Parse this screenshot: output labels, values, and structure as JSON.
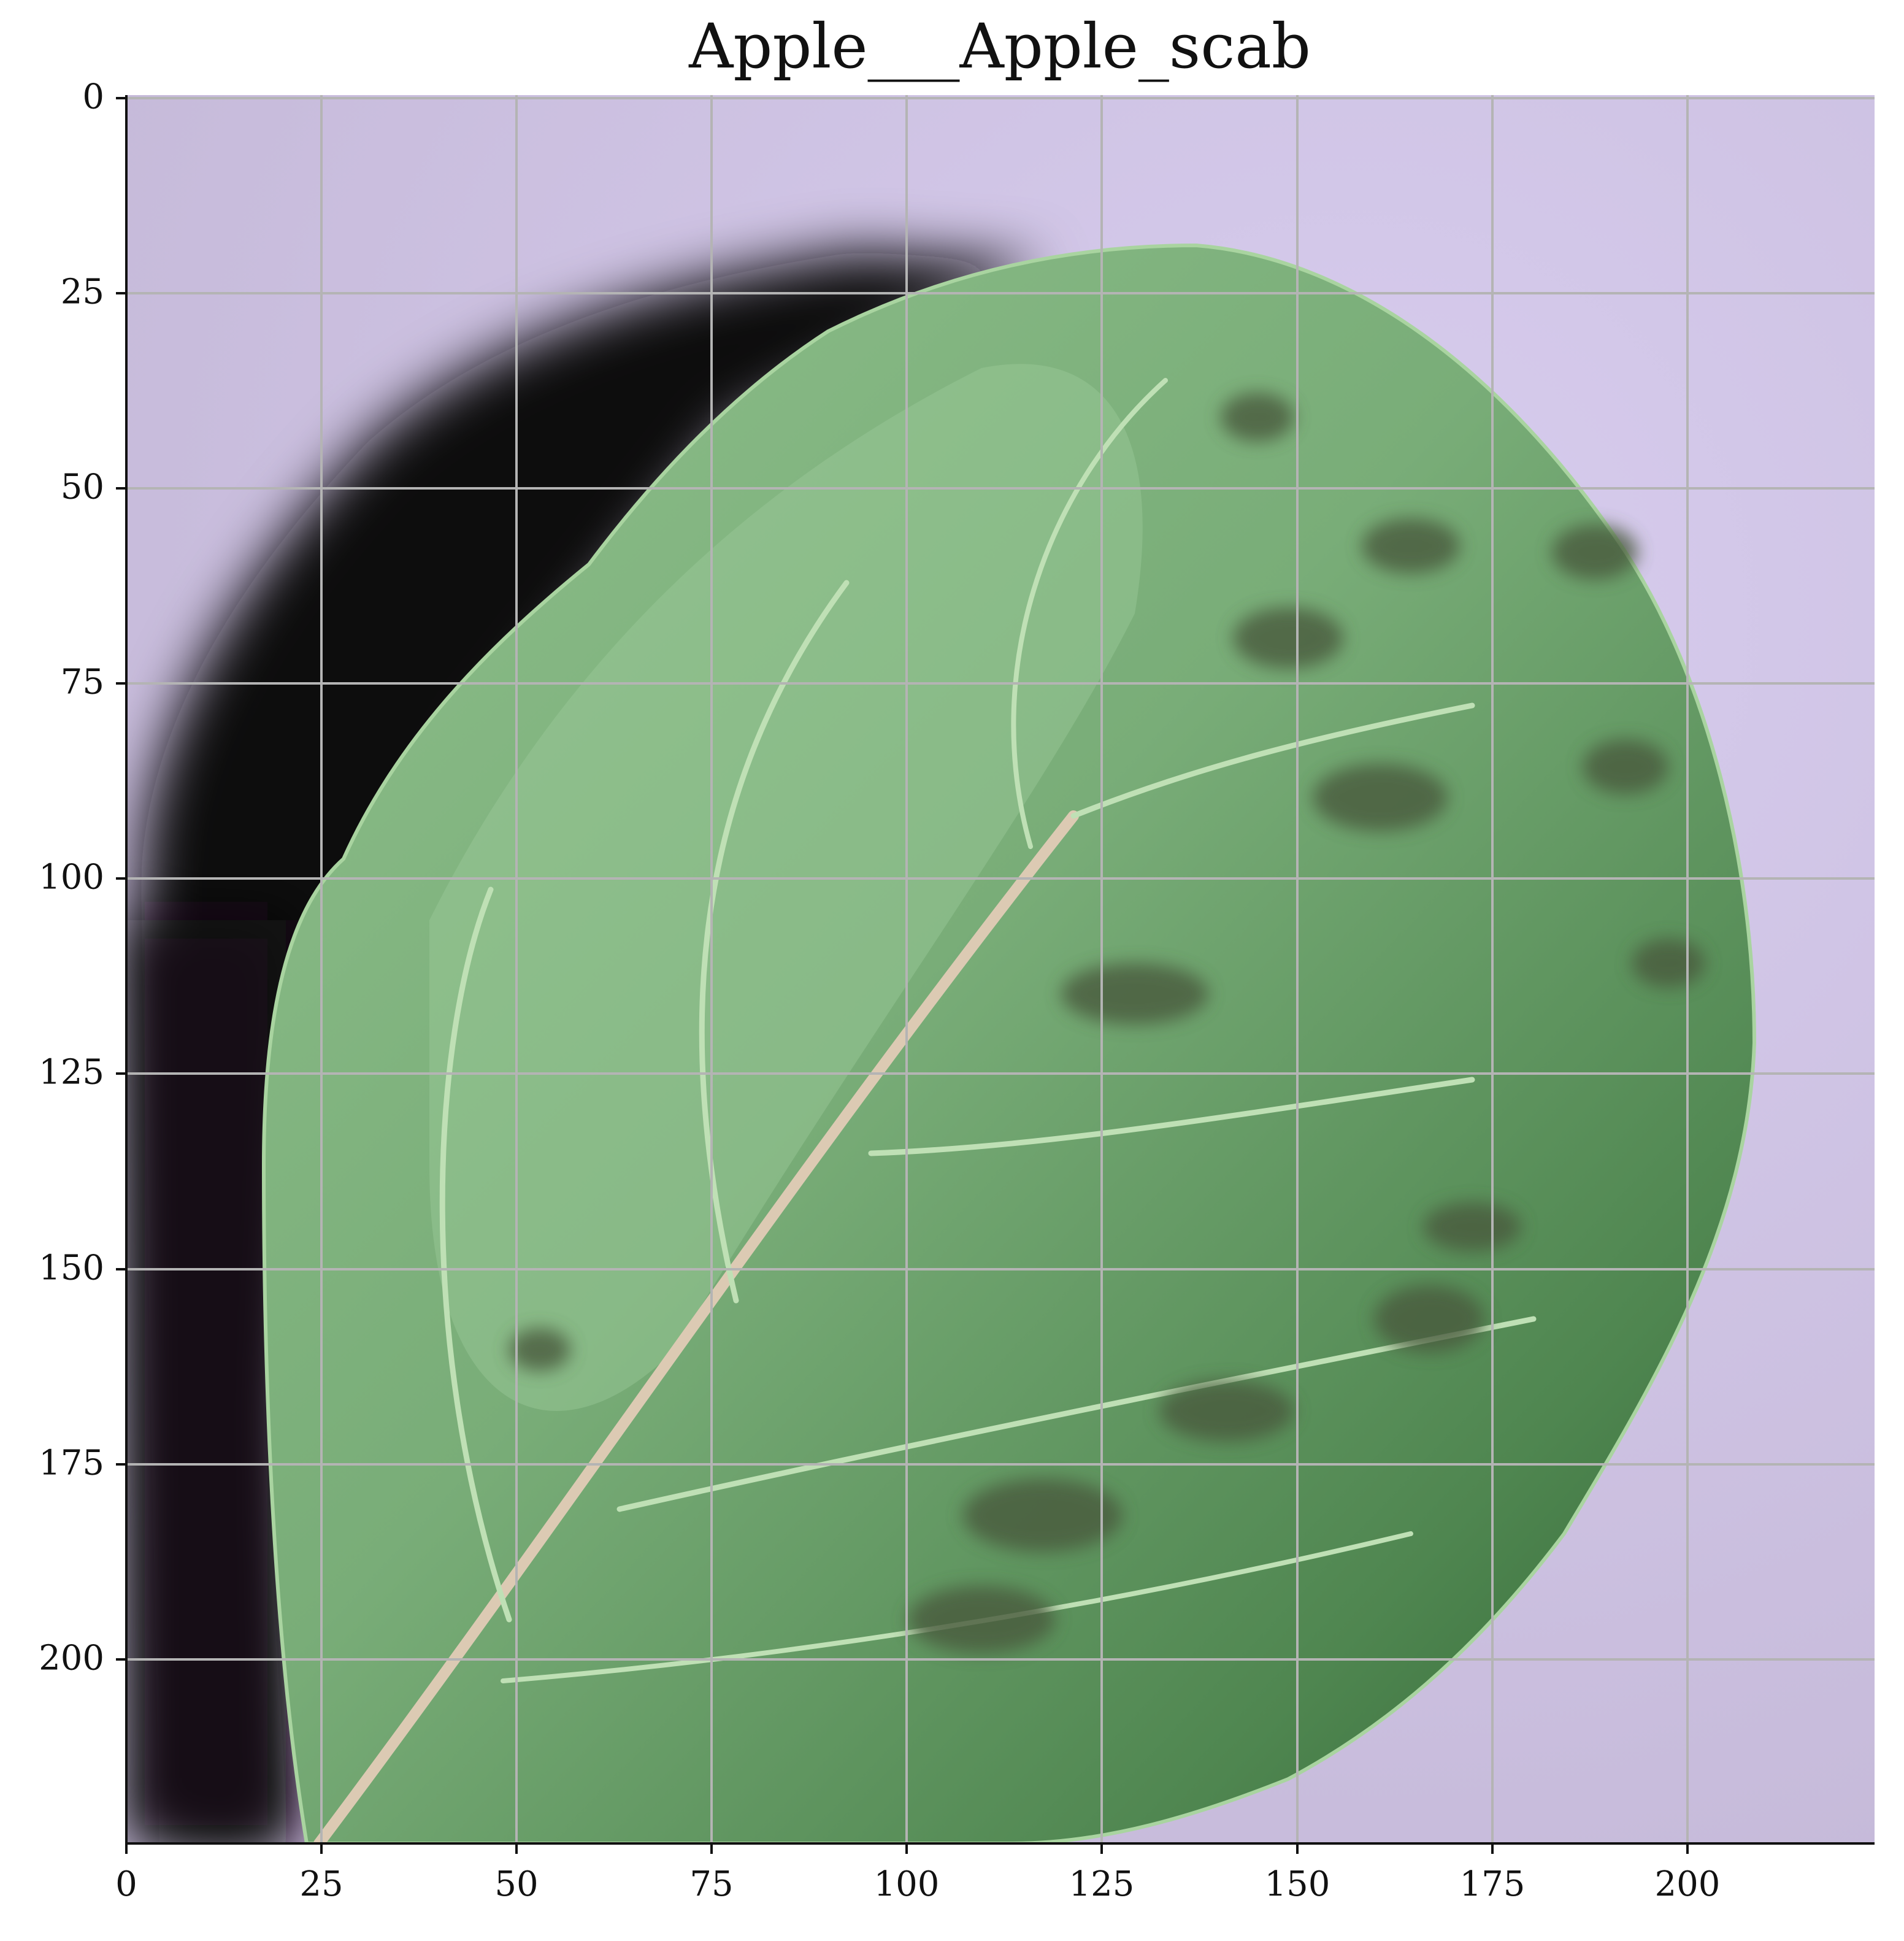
{
  "figure": {
    "title": "Apple___Apple_scab",
    "image_subject": "apple leaf with scab lesions on lavender background",
    "x_ticks": [
      "0",
      "25",
      "50",
      "75",
      "100",
      "125",
      "150",
      "175",
      "200"
    ],
    "y_ticks": [
      "0",
      "25",
      "50",
      "75",
      "100",
      "125",
      "150",
      "175",
      "200"
    ],
    "xlim": [
      0,
      224
    ],
    "ylim": [
      224,
      0
    ],
    "grid": true
  },
  "colors": {
    "background": "#cfc3e6",
    "leaf_light": "#8dbb8a",
    "leaf_mid": "#6a9f6a",
    "leaf_dark": "#3f7440",
    "shadow": "#0d0a0e",
    "vein": "#d9c9b5",
    "lesion": "#4a5a3c",
    "grid": "#b4b4b4"
  }
}
